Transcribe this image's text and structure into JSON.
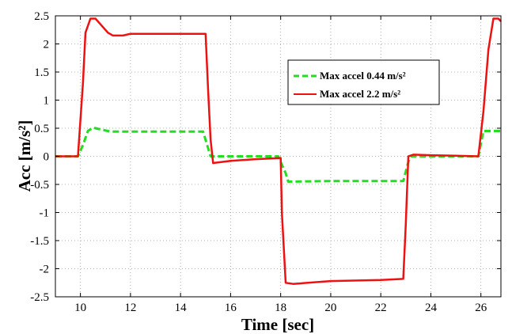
{
  "chart_data": {
    "type": "line",
    "xlabel": "Time [sec]",
    "ylabel": "Acc [m/s²]",
    "xlim": [
      9,
      26.8
    ],
    "ylim": [
      -2.5,
      2.5
    ],
    "x_ticks": [
      "10",
      "12",
      "14",
      "16",
      "18",
      "20",
      "22",
      "24",
      "26"
    ],
    "y_ticks": [
      "2.5",
      "2",
      "1.5",
      "1",
      "0.5",
      "0",
      "-0.5",
      "-1",
      "-1.5",
      "-2",
      "-2.5"
    ],
    "grid": true,
    "legend_position": "upper-right",
    "series": [
      {
        "name": "Max accel 0.44 m/s²",
        "color": "#22dd22",
        "style": "dashed",
        "points": [
          [
            9,
            0
          ],
          [
            9.9,
            0
          ],
          [
            10.1,
            0.2
          ],
          [
            10.3,
            0.45
          ],
          [
            10.5,
            0.51
          ],
          [
            10.8,
            0.48
          ],
          [
            11.2,
            0.44
          ],
          [
            12,
            0.44
          ],
          [
            14,
            0.44
          ],
          [
            14.9,
            0.44
          ],
          [
            15.1,
            0.15
          ],
          [
            15.2,
            0
          ],
          [
            16,
            0
          ],
          [
            17.9,
            0
          ],
          [
            18.2,
            -0.3
          ],
          [
            18.3,
            -0.45
          ],
          [
            20,
            -0.44
          ],
          [
            22,
            -0.44
          ],
          [
            22.9,
            -0.44
          ],
          [
            23.1,
            -0.1
          ],
          [
            23.2,
            0
          ],
          [
            24,
            0
          ],
          [
            25.9,
            0
          ],
          [
            26.1,
            0.45
          ],
          [
            26.8,
            0.45
          ]
        ]
      },
      {
        "name": "Max accel 2.2 m/s²",
        "color": "#ee1111",
        "style": "solid",
        "points": [
          [
            9,
            0
          ],
          [
            9.9,
            0
          ],
          [
            10.1,
            1.3
          ],
          [
            10.2,
            2.2
          ],
          [
            10.4,
            2.45
          ],
          [
            10.6,
            2.45
          ],
          [
            10.8,
            2.35
          ],
          [
            11.1,
            2.2
          ],
          [
            11.3,
            2.15
          ],
          [
            11.7,
            2.15
          ],
          [
            12,
            2.18
          ],
          [
            14,
            2.18
          ],
          [
            15,
            2.18
          ],
          [
            15.1,
            1.2
          ],
          [
            15.2,
            0.3
          ],
          [
            15.3,
            -0.12
          ],
          [
            16,
            -0.08
          ],
          [
            17,
            -0.05
          ],
          [
            18,
            -0.03
          ],
          [
            18.05,
            -1
          ],
          [
            18.2,
            -2.25
          ],
          [
            18.5,
            -2.27
          ],
          [
            20,
            -2.22
          ],
          [
            22,
            -2.2
          ],
          [
            22.9,
            -2.18
          ],
          [
            23,
            -1.2
          ],
          [
            23.1,
            0
          ],
          [
            23.3,
            0.03
          ],
          [
            24,
            0.02
          ],
          [
            25,
            0.01
          ],
          [
            25.9,
            0
          ],
          [
            26.1,
            0.8
          ],
          [
            26.3,
            1.9
          ],
          [
            26.5,
            2.45
          ],
          [
            26.7,
            2.45
          ],
          [
            26.8,
            2.4
          ]
        ]
      }
    ]
  }
}
